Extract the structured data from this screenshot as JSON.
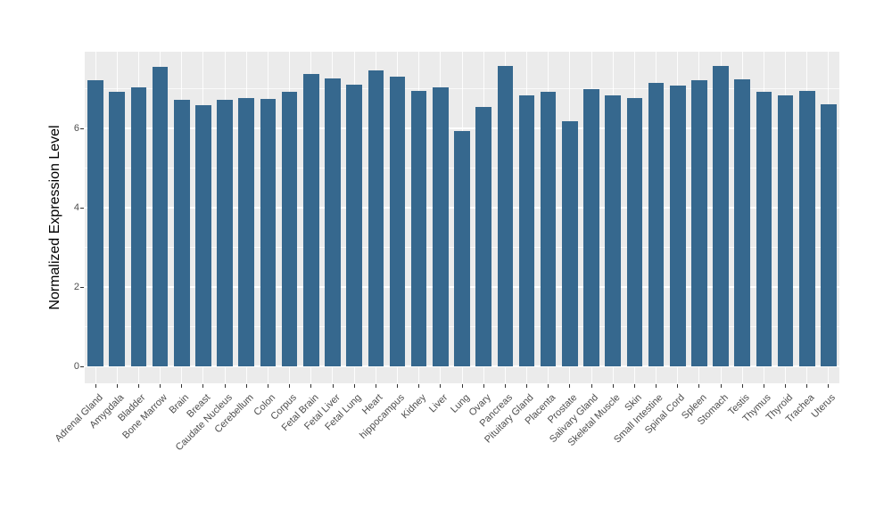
{
  "chart_data": {
    "type": "bar",
    "title": "",
    "xlabel": "",
    "ylabel": "Normalized Expression Level",
    "categories": [
      "Adrenal Gland",
      "Amygdala",
      "Bladder",
      "Bone Marrow",
      "Brain",
      "Breast",
      "Caudate Nucleus",
      "Cerebellum",
      "Colon",
      "Corpus",
      "Fetal Brain",
      "Fetal Liver",
      "Fetal Lung",
      "Heart",
      "hippocampus",
      "Kidney",
      "Liver",
      "Lung",
      "Ovary",
      "Pancreas",
      "Pituitary Gland",
      "Placenta",
      "Prostate",
      "Salivary Gland",
      "Skeletal Muscle",
      "Skin",
      "Small Intestine",
      "Spinal Cord",
      "Spleen",
      "Stomach",
      "Testis",
      "Thymus",
      "Thyroid",
      "Trachea",
      "Uterus"
    ],
    "values": [
      7.22,
      6.94,
      7.04,
      7.56,
      6.72,
      6.6,
      6.72,
      6.78,
      6.76,
      6.92,
      7.37,
      7.27,
      7.12,
      7.47,
      7.32,
      6.96,
      7.05,
      5.95,
      6.55,
      7.58,
      6.83,
      6.94,
      6.18,
      7.0,
      6.85,
      6.77,
      7.15,
      7.09,
      7.22,
      7.59,
      7.25,
      6.93,
      6.85,
      6.96,
      6.61
    ],
    "yticks": [
      0,
      2,
      4,
      6
    ],
    "yticks_minor": [
      1,
      3,
      5,
      7
    ],
    "ylim": [
      -0.4,
      7.95
    ],
    "grid": "on",
    "legend": "none",
    "colors": {
      "bar_fill": "#36688e",
      "panel_background": "#ebebeb",
      "gridline": "#ffffff",
      "tick_mark": "#333333",
      "tick_label_text": "#4d4d4d",
      "axis_title_text": "#000000",
      "page_background": "#ffffff"
    }
  }
}
